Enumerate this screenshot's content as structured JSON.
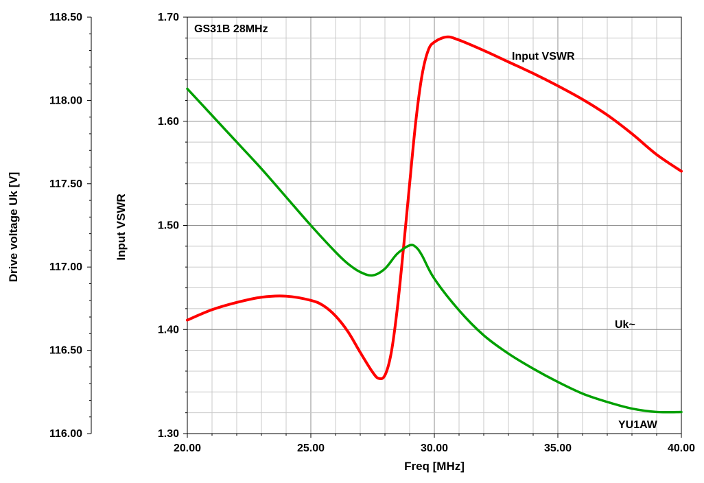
{
  "chart_data": {
    "type": "line",
    "annotations": {
      "title": "GS31B 28MHz",
      "vswr_label": "Input VSWR",
      "uk_label": "Uk~",
      "author": "YU1AW"
    },
    "xlabel": "Freq [MHz]",
    "ylabel_left": "Input VSWR",
    "ylabel_outer": "Drive voltage Uk [V]",
    "xlim": [
      20,
      40
    ],
    "ylim": [
      1.3,
      1.7
    ],
    "ylim_uk": [
      116.0,
      118.5
    ],
    "x_ticks": [
      "20.00",
      "25.00",
      "30.00",
      "35.00",
      "40.00"
    ],
    "y_ticks": [
      "1.30",
      "1.40",
      "1.50",
      "1.60",
      "1.70"
    ],
    "uk_ticks": [
      "116.00",
      "116.50",
      "117.00",
      "117.50",
      "118.00",
      "118.50"
    ],
    "grid": true,
    "series": [
      {
        "name": "Input VSWR",
        "color": "#ff0000",
        "axis": "vswr",
        "x": [
          20.0,
          21.0,
          22.0,
          23.0,
          24.0,
          25.0,
          25.5,
          26.0,
          26.5,
          27.0,
          27.5,
          27.75,
          28.0,
          28.25,
          28.5,
          28.75,
          29.0,
          29.25,
          29.5,
          29.75,
          30.0,
          30.5,
          31.0,
          32.0,
          33.0,
          34.0,
          35.0,
          36.0,
          37.0,
          38.0,
          39.0,
          40.0
        ],
        "y": [
          1.409,
          1.419,
          1.426,
          1.431,
          1.432,
          1.428,
          1.423,
          1.413,
          1.398,
          1.378,
          1.359,
          1.353,
          1.356,
          1.377,
          1.42,
          1.478,
          1.54,
          1.6,
          1.644,
          1.668,
          1.676,
          1.681,
          1.678,
          1.668,
          1.657,
          1.646,
          1.634,
          1.621,
          1.606,
          1.588,
          1.568,
          1.552
        ]
      },
      {
        "name": "Uk~",
        "color": "#00a000",
        "axis": "uk",
        "x": [
          20.0,
          21.0,
          22.0,
          23.0,
          24.0,
          25.0,
          26.0,
          26.5,
          27.0,
          27.5,
          28.0,
          28.5,
          29.0,
          29.25,
          29.5,
          30.0,
          31.0,
          32.0,
          33.0,
          34.0,
          35.0,
          36.0,
          37.0,
          38.0,
          39.0,
          40.0
        ],
        "y": [
          118.07,
          117.91,
          117.75,
          117.59,
          117.42,
          117.25,
          117.09,
          117.02,
          116.97,
          116.95,
          116.99,
          117.08,
          117.13,
          117.12,
          117.07,
          116.93,
          116.74,
          116.59,
          116.48,
          116.39,
          116.31,
          116.24,
          116.19,
          116.15,
          116.13,
          116.13
        ]
      }
    ]
  }
}
